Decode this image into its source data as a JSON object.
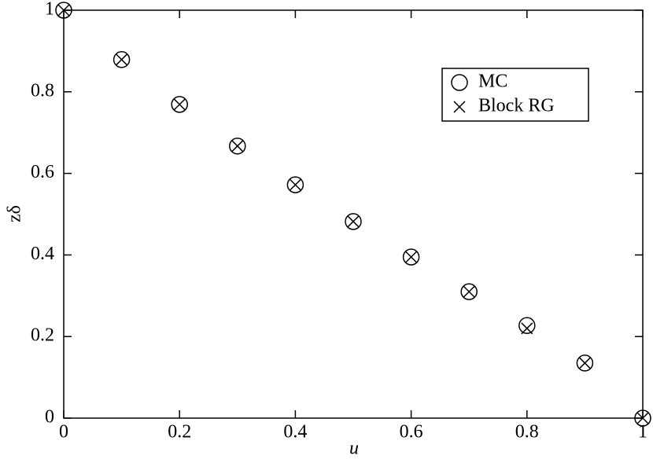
{
  "chart_data": {
    "type": "scatter",
    "x_label": "u",
    "y_label": "zδ",
    "x": [
      0,
      0.1,
      0.2,
      0.3,
      0.4,
      0.5,
      0.6,
      0.7,
      0.8,
      0.9,
      1
    ],
    "series": [
      {
        "name": "MC",
        "marker": "circle",
        "color": "#000000",
        "values": [
          1,
          0.879,
          0.769,
          0.667,
          0.572,
          0.482,
          0.395,
          0.31,
          0.227,
          0.135,
          0
        ]
      },
      {
        "name": "Block RG",
        "marker": "cross",
        "color": "#000000",
        "values": [
          1,
          0.879,
          0.769,
          0.667,
          0.572,
          0.482,
          0.395,
          0.31,
          0.22,
          0.135,
          0
        ]
      }
    ],
    "xlim": [
      0,
      1
    ],
    "ylim": [
      0,
      1
    ],
    "xticks": [
      0,
      0.2,
      0.4,
      0.6,
      0.8,
      1
    ],
    "yticks": [
      0,
      0.2,
      0.4,
      0.6,
      0.8,
      1
    ],
    "legend": "upper right"
  }
}
